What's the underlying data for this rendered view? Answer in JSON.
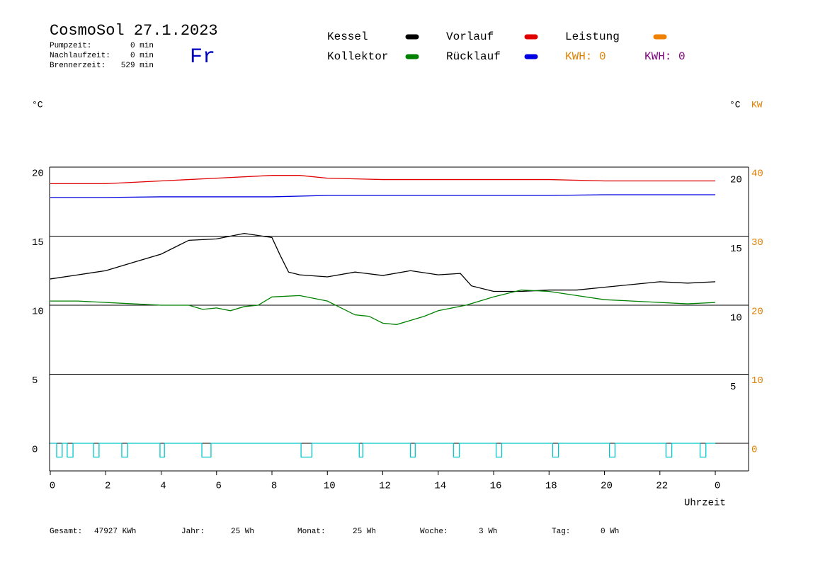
{
  "chart_data": {
    "type": "line",
    "title": "CosmoSol 27.1.2023",
    "day": "Fr",
    "status": [
      {
        "label": "Pumpzeit:",
        "value": "0 min"
      },
      {
        "label": "Nachlaufzeit:",
        "value": "0 min"
      },
      {
        "label": "Brennerzeit:",
        "value": "529 min"
      }
    ],
    "kwh_labels": [
      {
        "text": "KWH: 0",
        "color": "#e08000"
      },
      {
        "text": "KWH: 0",
        "color": "#800080"
      }
    ],
    "y_label": "°C",
    "y_right_label": "°C",
    "y2_label": "KW",
    "x_label": "Uhrzeit",
    "xlim": [
      0,
      25.2
    ],
    "xticks": [
      0,
      2,
      4,
      6,
      8,
      10,
      12,
      14,
      16,
      18,
      20,
      22,
      {
        "value": 24,
        "label": "0"
      }
    ],
    "ylim": [
      -2,
      20
    ],
    "yticks": [
      0,
      5,
      10,
      15,
      20
    ],
    "y_right_ticks": [
      5,
      10,
      15,
      20
    ],
    "y2lim": [
      -4,
      40
    ],
    "y2ticks": [
      0,
      10,
      20,
      30,
      40
    ],
    "y2_color": "#e08000",
    "grid": true,
    "series": [
      {
        "name": "Kessel",
        "color": "#000000",
        "x": [
          0,
          1,
          2,
          3,
          4,
          5,
          6,
          7,
          8,
          8.3,
          8.6,
          9,
          10,
          11,
          12,
          13,
          14,
          14.8,
          15.2,
          16,
          17,
          18,
          19,
          20,
          21,
          22,
          23,
          24
        ],
        "values": [
          11.9,
          12.2,
          12.5,
          13.1,
          13.7,
          14.7,
          14.8,
          15.2,
          14.9,
          13.6,
          12.4,
          12.2,
          12.05,
          12.4,
          12.15,
          12.5,
          12.2,
          12.3,
          11.4,
          11.0,
          11.0,
          11.1,
          11.1,
          11.3,
          11.5,
          11.7,
          11.6,
          11.7
        ]
      },
      {
        "name": "Vorlauf",
        "color": "#e00000",
        "x": [
          0,
          2,
          4,
          6,
          8,
          9,
          10,
          12,
          14,
          16,
          18,
          20,
          22,
          24
        ],
        "values": [
          18.8,
          18.8,
          19.0,
          19.2,
          19.4,
          19.4,
          19.2,
          19.1,
          19.1,
          19.1,
          19.1,
          19.0,
          19.0,
          19.0
        ]
      },
      {
        "name": "Leistung",
        "color": "#f08000",
        "axis": "y2",
        "x": [],
        "values": []
      },
      {
        "name": "Kollektor",
        "color": "#008000",
        "x": [
          0,
          1,
          2,
          3,
          4,
          5,
          5.5,
          6,
          6.5,
          7,
          7.5,
          8,
          9,
          10,
          10.5,
          11,
          11.5,
          12,
          12.5,
          13,
          13.5,
          14,
          15,
          16,
          17,
          18,
          19,
          20,
          21,
          22,
          23,
          24
        ],
        "values": [
          10.3,
          10.3,
          10.2,
          10.1,
          10.0,
          10.0,
          9.7,
          9.8,
          9.6,
          9.9,
          10.0,
          10.6,
          10.7,
          10.3,
          9.8,
          9.3,
          9.2,
          8.7,
          8.6,
          8.9,
          9.2,
          9.6,
          10.0,
          10.6,
          11.1,
          11.0,
          10.7,
          10.4,
          10.3,
          10.2,
          10.1,
          10.2
        ]
      },
      {
        "name": "Rücklauf",
        "color": "#0000e0",
        "x": [
          0,
          2,
          4,
          6,
          8,
          10,
          12,
          14,
          16,
          18,
          20,
          22,
          24
        ],
        "values": [
          17.8,
          17.8,
          17.85,
          17.85,
          17.85,
          17.95,
          17.95,
          17.95,
          17.95,
          17.95,
          18.0,
          18.0,
          18.0
        ]
      },
      {
        "color": "#00c8c8",
        "x": [
          0,
          0.23,
          0.23,
          0.43,
          0.43,
          0.61,
          0.61,
          0.82,
          0.82,
          1.56,
          1.56,
          1.76,
          1.76,
          2.58,
          2.58,
          2.79,
          2.79,
          3.96,
          3.96,
          4.12,
          4.12,
          5.47,
          5.47,
          5.8,
          5.8,
          9.05,
          9.05,
          9.44,
          9.44,
          11.15,
          11.15,
          11.28,
          11.28,
          13.0,
          13.0,
          13.17,
          13.17,
          14.55,
          14.55,
          14.76,
          14.76,
          16.09,
          16.09,
          16.29,
          16.29,
          18.13,
          18.13,
          18.34,
          18.34,
          20.18,
          20.18,
          20.38,
          20.38,
          22.22,
          22.22,
          22.43,
          22.43,
          23.45,
          23.45,
          23.66,
          23.66,
          24
        ],
        "values": [
          0,
          0,
          -1,
          -1,
          0,
          0,
          -1,
          -1,
          0,
          0,
          -1,
          -1,
          0,
          0,
          -1,
          -1,
          0,
          0,
          -1,
          -1,
          0,
          0,
          -1,
          -1,
          0,
          0,
          -1,
          -1,
          0,
          0,
          -1,
          -1,
          0,
          0,
          -1,
          -1,
          0,
          0,
          -1,
          -1,
          0,
          0,
          -1,
          -1,
          0,
          0,
          -1,
          -1,
          0,
          0,
          -1,
          -1,
          0,
          0,
          -1,
          -1,
          0,
          0,
          -1,
          -1,
          0,
          0
        ]
      }
    ],
    "footer": [
      {
        "label": "Gesamt:",
        "value": "47927 KWh"
      },
      {
        "label": "Jahr:",
        "value": "25 Wh"
      },
      {
        "label": "Monat:",
        "value": "25 Wh"
      },
      {
        "label": "Woche:",
        "value": "3 Wh"
      },
      {
        "label": "Tag:",
        "value": "0 Wh"
      }
    ]
  }
}
